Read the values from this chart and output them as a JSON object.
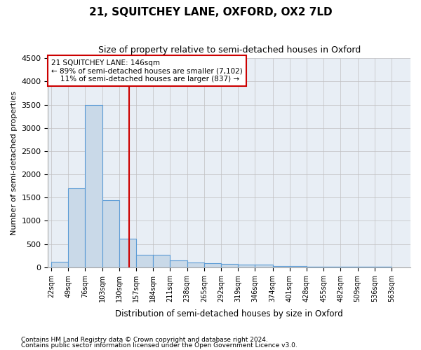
{
  "title": "21, SQUITCHEY LANE, OXFORD, OX2 7LD",
  "subtitle": "Size of property relative to semi-detached houses in Oxford",
  "xlabel": "Distribution of semi-detached houses by size in Oxford",
  "ylabel": "Number of semi-detached properties",
  "property_size": 146,
  "property_label": "21 SQUITCHEY LANE: 146sqm",
  "pct_smaller": 89,
  "n_smaller": 7102,
  "pct_larger": 11,
  "n_larger": 837,
  "bar_edges": [
    22,
    49,
    76,
    103,
    130,
    157,
    184,
    211,
    238,
    265,
    292,
    319,
    346,
    374,
    401,
    428,
    455,
    482,
    509,
    536,
    563
  ],
  "bar_heights": [
    110,
    1700,
    3500,
    1450,
    610,
    270,
    270,
    155,
    100,
    90,
    65,
    50,
    50,
    25,
    20,
    15,
    10,
    10,
    8,
    5
  ],
  "bar_color": "#c9d9e8",
  "bar_edge_color": "#5b9bd5",
  "vline_color": "#cc0000",
  "annotation_box_color": "#cc0000",
  "grid_color": "#c0c0c0",
  "bg_color": "#e8eef5",
  "ylim": [
    0,
    4500
  ],
  "yticks": [
    0,
    500,
    1000,
    1500,
    2000,
    2500,
    3000,
    3500,
    4000,
    4500
  ],
  "footnote1": "Contains HM Land Registry data © Crown copyright and database right 2024.",
  "footnote2": "Contains public sector information licensed under the Open Government Licence v3.0."
}
